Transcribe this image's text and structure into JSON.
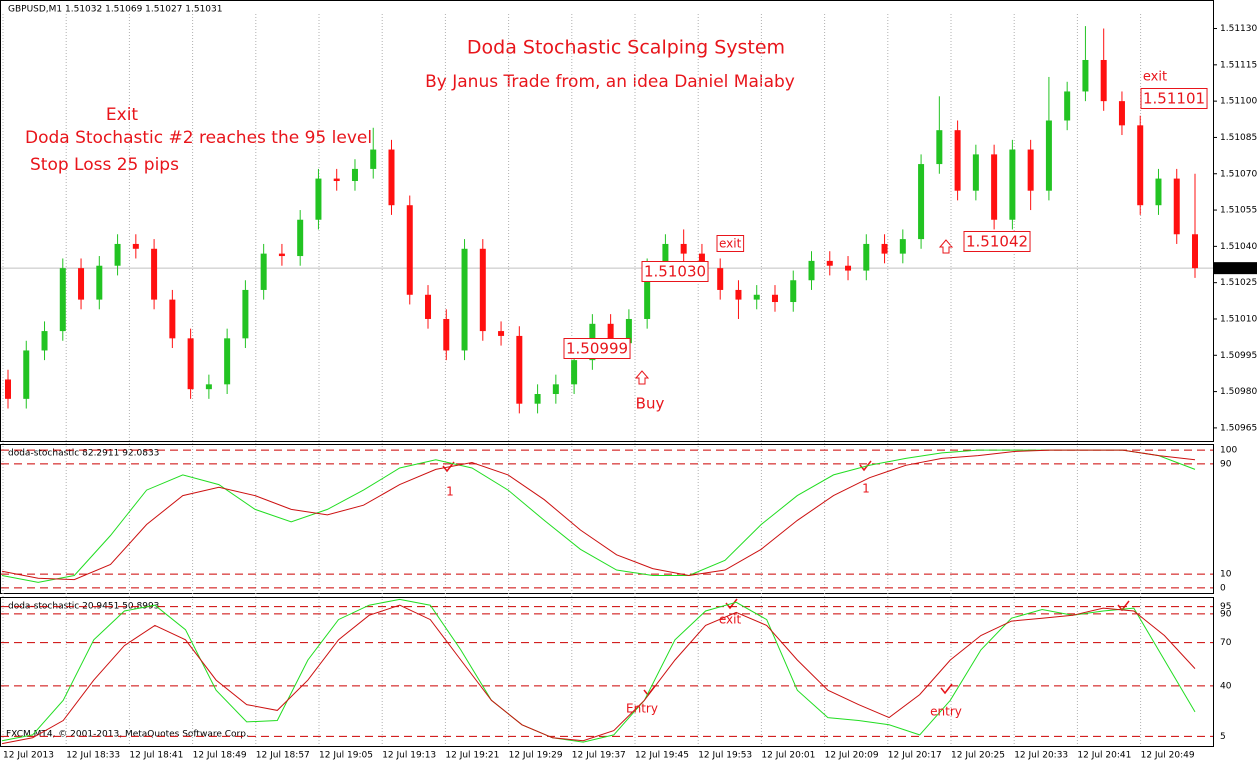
{
  "header": "GBPUSD,M1  1.51032 1.51069 1.51027 1.51031",
  "footer": "FXCM MT4, © 2001-2013, MetaQuotes Software Corp.",
  "chart_data": [
    {
      "type": "candlestick",
      "title": "Doda Stochastic Scalping System",
      "subtitle": "By Janus Trade from, an idea Daniel Malaby",
      "annotations": [
        "Exit",
        "Doda Stochastic #2 reaches the 95 level",
        "Stop Loss 25 pips",
        "1.50999",
        "1.51030",
        "exit",
        "1.51042",
        "exit",
        "1.51101",
        "Buy"
      ],
      "xtick_labels": [
        "12 Jul 2013",
        "12 Jul 18:33",
        "12 Jul 18:41",
        "12 Jul 18:49",
        "12 Jul 18:57",
        "12 Jul 19:05",
        "12 Jul 19:13",
        "12 Jul 19:21",
        "12 Jul 19:29",
        "12 Jul 19:37",
        "12 Jul 19:45",
        "12 Jul 19:53",
        "12 Jul 20:01",
        "12 Jul 20:09",
        "12 Jul 20:17",
        "12 Jul 20:25",
        "12 Jul 20:33",
        "12 Jul 20:41",
        "12 Jul 20:49"
      ],
      "open": [
        1.50985,
        1.50977,
        1.50997,
        1.51005,
        1.51031,
        1.51018,
        1.51032,
        1.51041,
        1.51039,
        1.51018,
        1.51002,
        1.50981,
        1.50983,
        1.51002,
        1.51022,
        1.51037,
        1.51036,
        1.51051,
        1.51068,
        1.51067,
        1.51072,
        1.5108,
        1.51057,
        1.5102,
        1.5101,
        1.50997,
        1.51039,
        1.51005,
        1.51003,
        1.50975,
        1.50979,
        1.50983,
        1.50993,
        1.51008,
        1.51,
        1.5101,
        1.51031,
        1.51041,
        1.51037,
        1.51031,
        1.51022,
        1.51018,
        1.5102,
        1.51017,
        1.51026,
        1.51034,
        1.51032,
        1.5103,
        1.51041,
        1.51037,
        1.51043,
        1.51074,
        1.51088,
        1.51063,
        1.51078,
        1.51051,
        1.5108,
        1.51063,
        1.51092,
        1.51104,
        1.51117,
        1.511,
        1.5109,
        1.51057,
        1.51068,
        1.51045
      ],
      "high": [
        1.50989,
        1.51001,
        1.51009,
        1.51035,
        1.51035,
        1.51036,
        1.51045,
        1.51045,
        1.51043,
        1.51022,
        1.51006,
        1.50987,
        1.51006,
        1.51026,
        1.51041,
        1.51041,
        1.51055,
        1.51072,
        1.51072,
        1.51076,
        1.51089,
        1.51084,
        1.51061,
        1.51024,
        1.51014,
        1.51043,
        1.51043,
        1.51009,
        1.51007,
        1.50983,
        1.50987,
        1.50997,
        1.51012,
        1.51012,
        1.51014,
        1.51035,
        1.51045,
        1.51047,
        1.51041,
        1.51035,
        1.51026,
        1.51024,
        1.51024,
        1.5103,
        1.51038,
        1.51038,
        1.51036,
        1.51045,
        1.51045,
        1.51047,
        1.51078,
        1.51102,
        1.51092,
        1.51082,
        1.51082,
        1.51084,
        1.51084,
        1.5111,
        1.51108,
        1.51131,
        1.5113,
        1.51104,
        1.51094,
        1.51072,
        1.51072,
        1.5107
      ],
      "low": [
        1.50973,
        1.50973,
        1.50993,
        1.51001,
        1.51014,
        1.51014,
        1.51028,
        1.51035,
        1.51014,
        1.50998,
        1.50977,
        1.50977,
        1.50979,
        1.50998,
        1.51018,
        1.51032,
        1.51032,
        1.51047,
        1.51063,
        1.51063,
        1.51068,
        1.51053,
        1.51016,
        1.51006,
        1.50993,
        1.50993,
        1.51001,
        1.50999,
        1.50971,
        1.50971,
        1.50975,
        1.50979,
        1.50989,
        1.50996,
        1.50996,
        1.51006,
        1.51027,
        1.51033,
        1.51027,
        1.51018,
        1.5101,
        1.51014,
        1.51013,
        1.51013,
        1.51022,
        1.51028,
        1.51026,
        1.51026,
        1.51033,
        1.51033,
        1.51039,
        1.5107,
        1.51059,
        1.51059,
        1.51047,
        1.51047,
        1.51055,
        1.51059,
        1.51088,
        1.511,
        1.51096,
        1.51086,
        1.51053,
        1.51053,
        1.51041,
        1.51027
      ],
      "close": [
        1.50977,
        1.50997,
        1.51005,
        1.51031,
        1.51018,
        1.51032,
        1.51041,
        1.51039,
        1.51018,
        1.51002,
        1.50981,
        1.50983,
        1.51002,
        1.51022,
        1.51037,
        1.51036,
        1.51051,
        1.51068,
        1.51067,
        1.51072,
        1.5108,
        1.51057,
        1.5102,
        1.5101,
        1.50997,
        1.51039,
        1.51005,
        1.51003,
        1.50975,
        1.50979,
        1.50983,
        1.50993,
        1.51008,
        1.51,
        1.5101,
        1.51031,
        1.51041,
        1.51037,
        1.51031,
        1.51022,
        1.51018,
        1.5102,
        1.51017,
        1.51026,
        1.51034,
        1.51032,
        1.5103,
        1.51041,
        1.51037,
        1.51043,
        1.51074,
        1.51088,
        1.51063,
        1.51078,
        1.51051,
        1.5108,
        1.51063,
        1.51092,
        1.51104,
        1.51117,
        1.511,
        1.5109,
        1.51057,
        1.51068,
        1.51045,
        1.51031
      ],
      "up_color": "#22c322",
      "down_color": "#ff1010",
      "ylim": [
        1.5096,
        1.51136
      ],
      "yticks": [
        {
          "value": 1.5113,
          "label": "1.51130"
        },
        1.51115,
        {
          "value": 1.511,
          "label": "1.51100"
        },
        1.51085,
        {
          "value": 1.5107,
          "label": "1.51070"
        },
        1.51055,
        {
          "value": 1.5104,
          "label": "1.51040"
        },
        1.51025,
        {
          "value": 1.5101,
          "label": "1.51010"
        },
        1.50995,
        {
          "value": 1.5098,
          "label": "1.50980"
        },
        1.50965
      ],
      "last_price": 1.51031
    },
    {
      "type": "line",
      "title": "doda-stochastic 82.2911 92.0833",
      "ylim": [
        -3,
        103
      ],
      "yticks": [
        100,
        90,
        10,
        0
      ],
      "level_color": "#cc0000",
      "annotations": [
        "1",
        "1"
      ],
      "series": [
        {
          "color": "#22dd22",
          "values": [
            9,
            4,
            9,
            38,
            71,
            82,
            75,
            57,
            48,
            57,
            71,
            87,
            93,
            87,
            71,
            49,
            28,
            13,
            9,
            9,
            20,
            46,
            67,
            82,
            89,
            94,
            98,
            100,
            100,
            100,
            100,
            100,
            96,
            86
          ]
        },
        {
          "color": "#cc1111",
          "values": [
            12,
            7,
            6,
            17,
            46,
            67,
            73,
            67,
            57,
            53,
            60,
            75,
            86,
            91,
            82,
            64,
            42,
            24,
            14,
            9,
            13,
            28,
            49,
            67,
            80,
            89,
            94,
            96,
            99,
            100,
            100,
            100,
            96,
            93
          ]
        }
      ]
    },
    {
      "type": "line",
      "title": "doda-stochastic 20.9451 50.8993",
      "ylim": [
        -1,
        101
      ],
      "yticks": [
        95,
        90,
        70,
        40,
        5
      ],
      "level_color": "#cc0000",
      "annotations": [
        "exit",
        "Entry",
        "entry"
      ],
      "series": [
        {
          "color": "#22dd22",
          "values": [
            2,
            6,
            30,
            72,
            92,
            96,
            79,
            37,
            15,
            16,
            58,
            86,
            96,
            100,
            96,
            65,
            30,
            13,
            4,
            1,
            6,
            30,
            72,
            92,
            98,
            86,
            37,
            18,
            16,
            13,
            6,
            30,
            65,
            87,
            93,
            89,
            92,
            94,
            58,
            22
          ]
        },
        {
          "color": "#cc1111",
          "values": [
            0,
            4,
            16,
            44,
            68,
            82,
            72,
            44,
            27,
            23,
            44,
            72,
            89,
            96,
            86,
            58,
            30,
            13,
            4,
            2,
            9,
            30,
            58,
            82,
            91,
            82,
            58,
            37,
            27,
            18,
            34,
            58,
            75,
            85,
            87,
            89,
            94,
            92,
            75,
            52
          ]
        }
      ]
    }
  ]
}
